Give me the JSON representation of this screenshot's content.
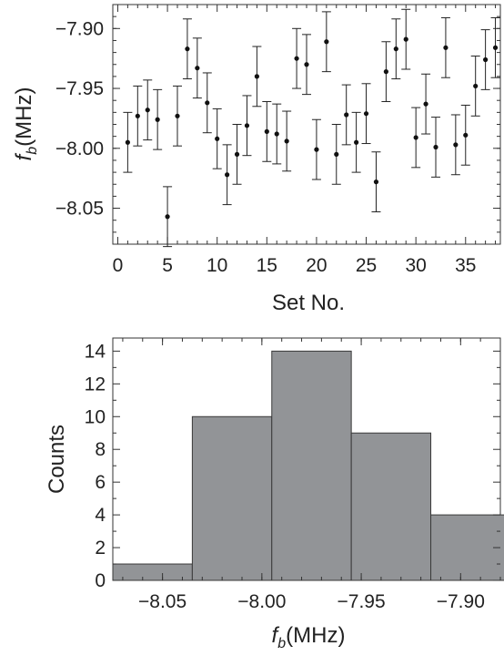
{
  "chart_data": [
    {
      "type": "scatter",
      "xlabel": "Set No.",
      "ylabel_main": "f",
      "ylabel_sub": "b",
      "ylabel_unit": "(MHz)",
      "xlim": [
        -0.5,
        38.5
      ],
      "ylim": [
        -8.08,
        -7.88
      ],
      "xticks": [
        0,
        5,
        10,
        15,
        20,
        25,
        30,
        35
      ],
      "xtick_labels": [
        "0",
        "5",
        "10",
        "15",
        "20",
        "25",
        "30",
        "35"
      ],
      "yticks": [
        -7.9,
        -7.95,
        -8.0,
        -8.05
      ],
      "ytick_labels": [
        "−7.90",
        "−7.95",
        "−8.00",
        "−8.05"
      ],
      "error_bar": 0.025,
      "x": [
        1,
        2,
        3,
        4,
        5,
        6,
        7,
        8,
        9,
        10,
        11,
        12,
        13,
        14,
        15,
        16,
        17,
        18,
        19,
        20,
        21,
        22,
        23,
        24,
        25,
        26,
        27,
        28,
        29,
        30,
        31,
        32,
        33,
        34,
        35,
        36,
        37,
        38
      ],
      "y": [
        -7.995,
        -7.973,
        -7.968,
        -7.976,
        -8.057,
        -7.973,
        -7.917,
        -7.933,
        -7.962,
        -7.992,
        -8.022,
        -8.005,
        -7.981,
        -7.94,
        -7.986,
        -7.988,
        -7.994,
        -7.925,
        -7.93,
        -8.001,
        -7.911,
        -8.005,
        -7.972,
        -7.995,
        -7.971,
        -8.028,
        -7.936,
        -7.917,
        -7.909,
        -7.991,
        -7.963,
        -7.999,
        -7.916,
        -7.997,
        -7.989,
        -7.948,
        -7.926,
        -7.916
      ]
    },
    {
      "type": "bar",
      "xlabel_main": "f",
      "xlabel_sub": "b",
      "xlabel_unit": "(MHz)",
      "ylabel": "Counts",
      "xlim": [
        -8.075,
        -7.88
      ],
      "ylim": [
        0,
        14.8
      ],
      "bin_edges": [
        -8.075,
        -8.035,
        -7.995,
        -7.955,
        -7.915,
        -7.875
      ],
      "values": [
        1,
        10,
        14,
        9,
        4
      ],
      "xticks": [
        -8.05,
        -8.0,
        -7.95,
        -7.9
      ],
      "xtick_labels": [
        "−8.05",
        "−8.00",
        "−7.95",
        "−7.90"
      ],
      "yticks": [
        0,
        2,
        4,
        6,
        8,
        10,
        12,
        14
      ],
      "ytick_labels": [
        "0",
        "2",
        "4",
        "6",
        "8",
        "10",
        "12",
        "14"
      ],
      "bar_color": "#929497"
    }
  ]
}
